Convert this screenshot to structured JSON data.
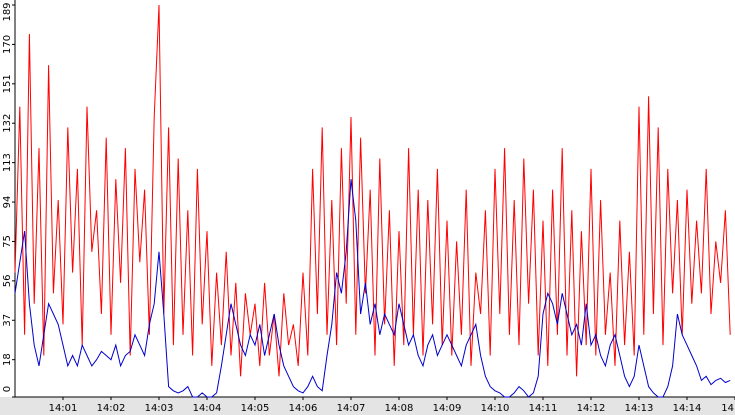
{
  "chart_data": {
    "type": "line",
    "x": [
      0.0,
      0.1,
      0.2,
      0.3,
      0.4,
      0.5,
      0.6,
      0.7,
      0.8,
      0.9,
      1.0,
      1.1,
      1.2,
      1.3,
      1.4,
      1.5,
      1.6,
      1.7,
      1.8,
      1.9,
      2.0,
      2.1,
      2.2,
      2.3,
      2.4,
      2.5,
      2.6,
      2.7,
      2.8,
      2.9,
      3.0,
      3.1,
      3.2,
      3.3,
      3.4,
      3.5,
      3.6,
      3.7,
      3.8,
      3.9,
      4.0,
      4.1,
      4.2,
      4.3,
      4.4,
      4.5,
      4.6,
      4.7,
      4.8,
      4.9,
      5.0,
      5.1,
      5.2,
      5.3,
      5.4,
      5.5,
      5.6,
      5.7,
      5.8,
      5.9,
      6.0,
      6.1,
      6.2,
      6.3,
      6.4,
      6.5,
      6.6,
      6.7,
      6.8,
      6.9,
      7.0,
      7.1,
      7.2,
      7.3,
      7.4,
      7.5,
      7.6,
      7.7,
      7.8,
      7.9,
      8.0,
      8.1,
      8.2,
      8.3,
      8.4,
      8.5,
      8.6,
      8.7,
      8.8,
      8.9,
      9.0,
      9.1,
      9.2,
      9.3,
      9.4,
      9.5,
      9.6,
      9.7,
      9.8,
      9.9,
      10.0,
      10.1,
      10.2,
      10.3,
      10.4,
      10.5,
      10.6,
      10.7,
      10.8,
      10.9,
      11.0,
      11.1,
      11.2,
      11.3,
      11.4,
      11.5,
      11.6,
      11.7,
      11.8,
      11.9,
      12.0,
      12.1,
      12.2,
      12.3,
      12.4,
      12.5,
      12.6,
      12.7,
      12.8,
      12.9,
      13.0,
      13.1,
      13.2,
      13.3,
      13.4,
      13.5,
      13.6,
      13.7,
      13.8,
      13.9,
      14.0,
      14.1,
      14.2,
      14.3,
      14.4,
      14.5,
      14.6,
      14.7,
      14.8,
      14.9
    ],
    "series": [
      {
        "color": "#ff0000",
        "values": [
          60,
          140,
          30,
          175,
          45,
          120,
          20,
          160,
          50,
          95,
          35,
          130,
          60,
          110,
          25,
          140,
          70,
          90,
          40,
          125,
          30,
          105,
          55,
          120,
          20,
          110,
          65,
          100,
          30,
          135,
          189,
          40,
          130,
          25,
          115,
          30,
          90,
          20,
          110,
          35,
          80,
          15,
          60,
          25,
          70,
          20,
          55,
          10,
          50,
          30,
          45,
          15,
          55,
          20,
          40,
          10,
          50,
          25,
          35,
          15,
          60,
          20,
          110,
          40,
          130,
          30,
          95,
          25,
          120,
          45,
          135,
          30,
          125,
          50,
          100,
          20,
          115,
          35,
          90,
          15,
          80,
          25,
          120,
          30,
          100,
          20,
          95,
          35,
          110,
          25,
          85,
          20,
          75,
          30,
          100,
          15,
          60,
          40,
          90,
          20,
          110,
          40,
          120,
          30,
          95,
          25,
          115,
          45,
          100,
          20,
          85,
          15,
          100,
          30,
          120,
          20,
          90,
          10,
          80,
          25,
          110,
          20,
          95,
          30,
          60,
          15,
          85,
          25,
          70,
          20,
          140,
          30,
          145,
          40,
          130,
          25,
          110,
          50,
          95,
          30,
          100,
          45,
          85,
          50,
          110,
          40,
          75,
          55,
          90,
          30
        ]
      },
      {
        "color": "#0000cc",
        "values": [
          50,
          65,
          80,
          45,
          25,
          15,
          30,
          45,
          40,
          35,
          25,
          15,
          20,
          15,
          25,
          20,
          15,
          18,
          22,
          20,
          18,
          25,
          15,
          20,
          22,
          30,
          25,
          20,
          35,
          45,
          70,
          40,
          5,
          3,
          2,
          3,
          5,
          0,
          0,
          2,
          0,
          0,
          2,
          15,
          30,
          45,
          35,
          25,
          20,
          30,
          25,
          35,
          20,
          30,
          40,
          25,
          15,
          10,
          5,
          3,
          2,
          5,
          10,
          5,
          3,
          20,
          35,
          60,
          50,
          70,
          105,
          85,
          40,
          55,
          35,
          45,
          30,
          40,
          35,
          30,
          45,
          35,
          25,
          30,
          20,
          15,
          25,
          30,
          20,
          25,
          30,
          25,
          20,
          15,
          25,
          30,
          35,
          20,
          10,
          5,
          3,
          2,
          0,
          0,
          2,
          5,
          3,
          0,
          2,
          10,
          40,
          50,
          45,
          35,
          50,
          40,
          30,
          35,
          25,
          45,
          25,
          30,
          20,
          15,
          25,
          30,
          20,
          10,
          5,
          10,
          25,
          15,
          5,
          2,
          0,
          0,
          5,
          15,
          40,
          30,
          25,
          20,
          15,
          8,
          10,
          6,
          8,
          9,
          7,
          8
        ]
      }
    ],
    "xlim": [
      0,
      15
    ],
    "xticks": [
      {
        "value": 1,
        "label": "14:01"
      },
      {
        "value": 2,
        "label": "14:02"
      },
      {
        "value": 3,
        "label": "14:03"
      },
      {
        "value": 4,
        "label": "14:04"
      },
      {
        "value": 5,
        "label": "14:05"
      },
      {
        "value": 6,
        "label": "14:06"
      },
      {
        "value": 7,
        "label": "14:07"
      },
      {
        "value": 8,
        "label": "14:08"
      },
      {
        "value": 9,
        "label": "14:09"
      },
      {
        "value": 10,
        "label": "14:10"
      },
      {
        "value": 11,
        "label": "14:11"
      },
      {
        "value": 12,
        "label": "14:12"
      },
      {
        "value": 13,
        "label": "14:13"
      },
      {
        "value": 14,
        "label": "14:14"
      },
      {
        "value": 15,
        "label": "14"
      }
    ],
    "ylim": [
      0,
      189
    ],
    "yticks": [
      0,
      18,
      37,
      56,
      75,
      94,
      113,
      132,
      151,
      170,
      189
    ],
    "grid": false
  }
}
